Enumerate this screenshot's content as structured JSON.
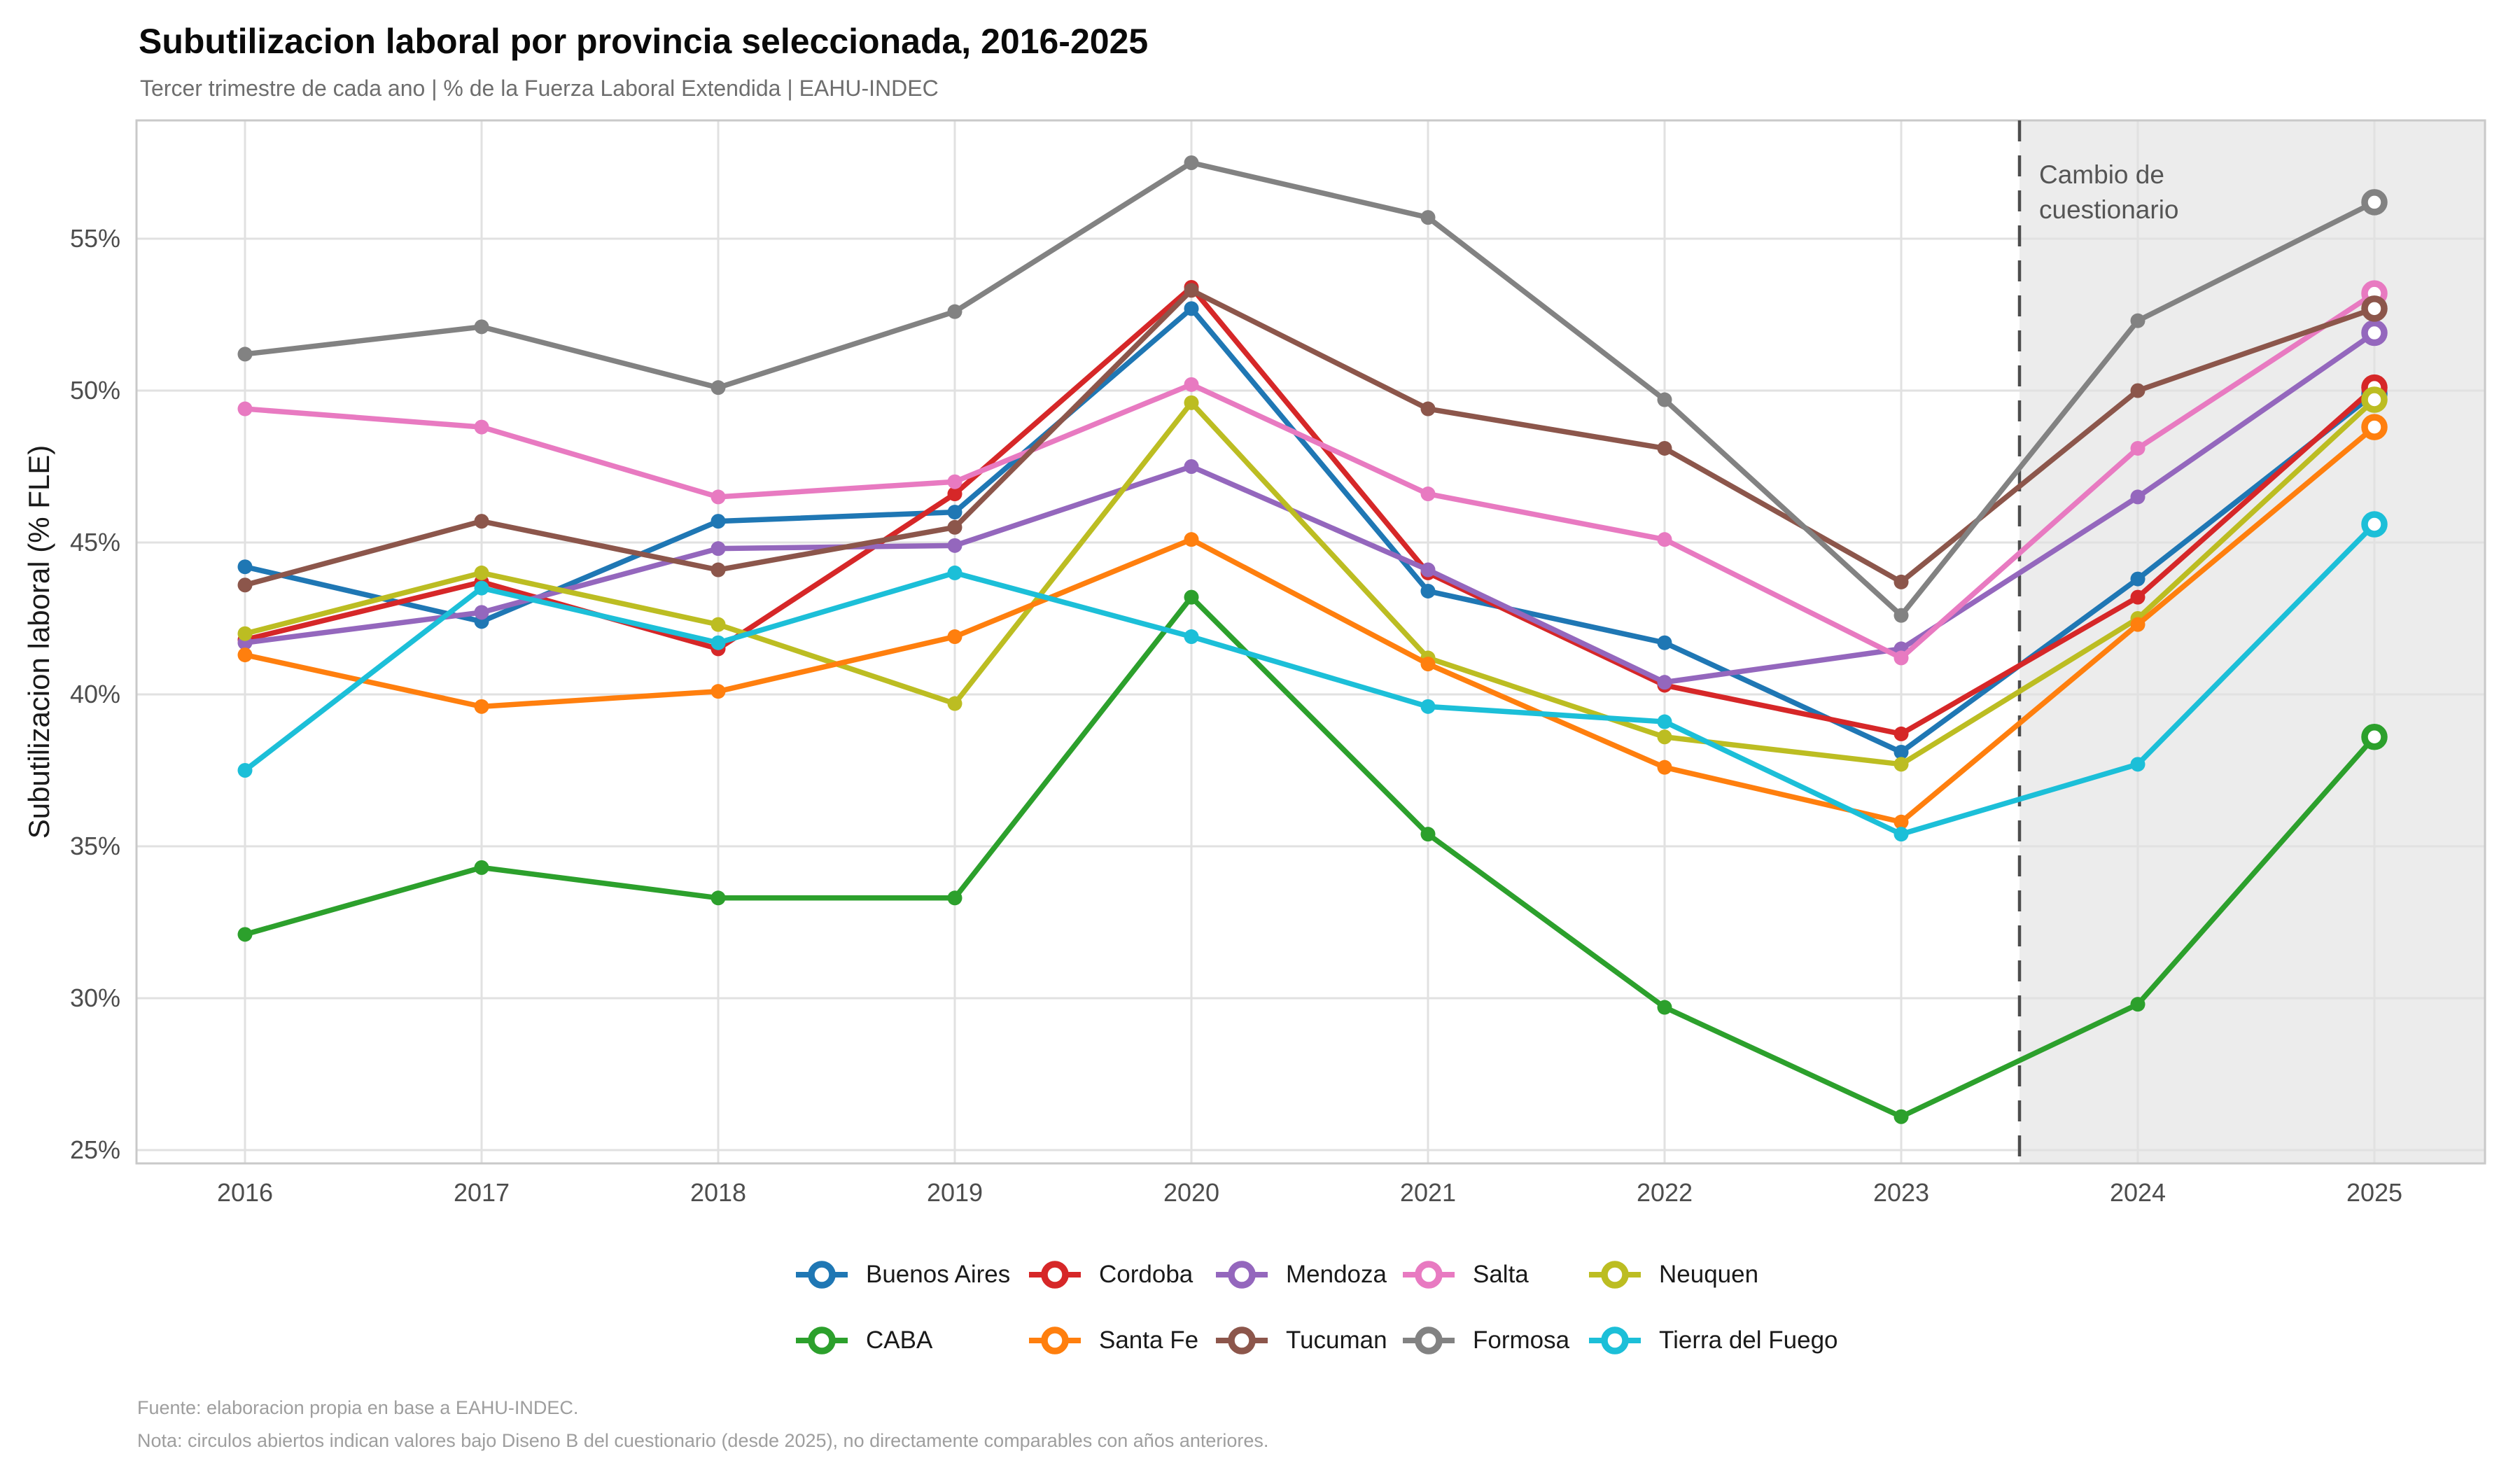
{
  "header": {
    "title": "Subutilizacion laboral por provincia seleccionada, 2016-2025",
    "subtitle": "Tercer trimestre de cada ano | % de la Fuerza Laboral Extendida | EAHU-INDEC"
  },
  "chart_data": {
    "type": "line",
    "x": [
      2016,
      2017,
      2018,
      2019,
      2020,
      2021,
      2022,
      2023,
      2024,
      2025
    ],
    "ylabel": "Subutilizacion laboral (% FLE)",
    "yticks_labels": [
      "25%",
      "30%",
      "35%",
      "40%",
      "45%",
      "50%",
      "55%"
    ],
    "yticks_values": [
      25,
      30,
      35,
      40,
      45,
      50,
      55
    ],
    "ylim": [
      24.6,
      58.6
    ],
    "grid": "on",
    "series": [
      {
        "name": "Buenos Aires",
        "color": "#1f77b4",
        "values": [
          44.2,
          42.4,
          45.7,
          46.0,
          52.7,
          43.4,
          41.7,
          38.1,
          43.8,
          49.9
        ]
      },
      {
        "name": "Cordoba",
        "color": "#d62728",
        "values": [
          41.8,
          43.7,
          41.5,
          46.6,
          53.4,
          44.0,
          40.3,
          38.7,
          43.2,
          50.1
        ]
      },
      {
        "name": "Mendoza",
        "color": "#9467bd",
        "values": [
          41.7,
          42.7,
          44.8,
          44.9,
          47.5,
          44.1,
          40.4,
          41.5,
          46.5,
          51.9
        ]
      },
      {
        "name": "Salta",
        "color": "#e87ac1",
        "values": [
          49.4,
          48.8,
          46.5,
          47.0,
          50.2,
          46.6,
          45.1,
          41.2,
          48.1,
          53.2
        ]
      },
      {
        "name": "Neuquen",
        "color": "#bcbd22",
        "values": [
          42.0,
          44.0,
          42.3,
          39.7,
          49.6,
          41.2,
          38.6,
          37.7,
          42.5,
          49.7
        ]
      },
      {
        "name": "CABA",
        "color": "#2ca02c",
        "values": [
          32.1,
          34.3,
          33.3,
          33.3,
          43.2,
          35.4,
          29.7,
          26.1,
          29.8,
          38.6
        ]
      },
      {
        "name": "Santa Fe",
        "color": "#ff7f0e",
        "values": [
          41.3,
          39.6,
          40.1,
          41.9,
          45.1,
          41.0,
          37.6,
          35.8,
          42.3,
          48.8
        ]
      },
      {
        "name": "Tucuman",
        "color": "#8c564b",
        "values": [
          43.6,
          45.7,
          44.1,
          45.5,
          53.3,
          49.4,
          48.1,
          43.7,
          50.0,
          52.7
        ]
      },
      {
        "name": "Formosa",
        "color": "#828282",
        "values": [
          51.2,
          52.1,
          50.1,
          52.6,
          57.5,
          55.7,
          49.7,
          42.6,
          52.3,
          56.2
        ]
      },
      {
        "name": "Tierra del Fuego",
        "color": "#1cbfd8",
        "values": [
          37.5,
          43.5,
          41.7,
          44.0,
          41.9,
          39.6,
          39.1,
          35.4,
          37.7,
          45.6
        ]
      }
    ],
    "open_circle_years": [
      2025
    ],
    "break_year": 2023.5,
    "shaded_region_fill": "#ececec",
    "annotation": {
      "lines": [
        "Cambio de",
        "cuestionario"
      ],
      "color": "#555555"
    },
    "legend_position": "bottom"
  },
  "legend": {
    "rows": [
      [
        "Buenos Aires",
        "Cordoba",
        "Mendoza",
        "Salta",
        "Neuquen"
      ],
      [
        "CABA",
        "Santa Fe",
        "Tucuman",
        "Formosa",
        "Tierra del Fuego"
      ]
    ]
  },
  "footer": {
    "source_note": "Fuente: elaboracion propia en base a EAHU-INDEC.",
    "design_note": "Nota: circulos abiertos indican valores bajo Diseno B del cuestionario (desde 2025), no directamente comparables con años anteriores."
  },
  "style_colors": {
    "grid": "#e1e1e1",
    "panel_border": "#c9c9c9",
    "tick_text": "#4d4d4d",
    "dashed_line": "#4d4d4d"
  }
}
